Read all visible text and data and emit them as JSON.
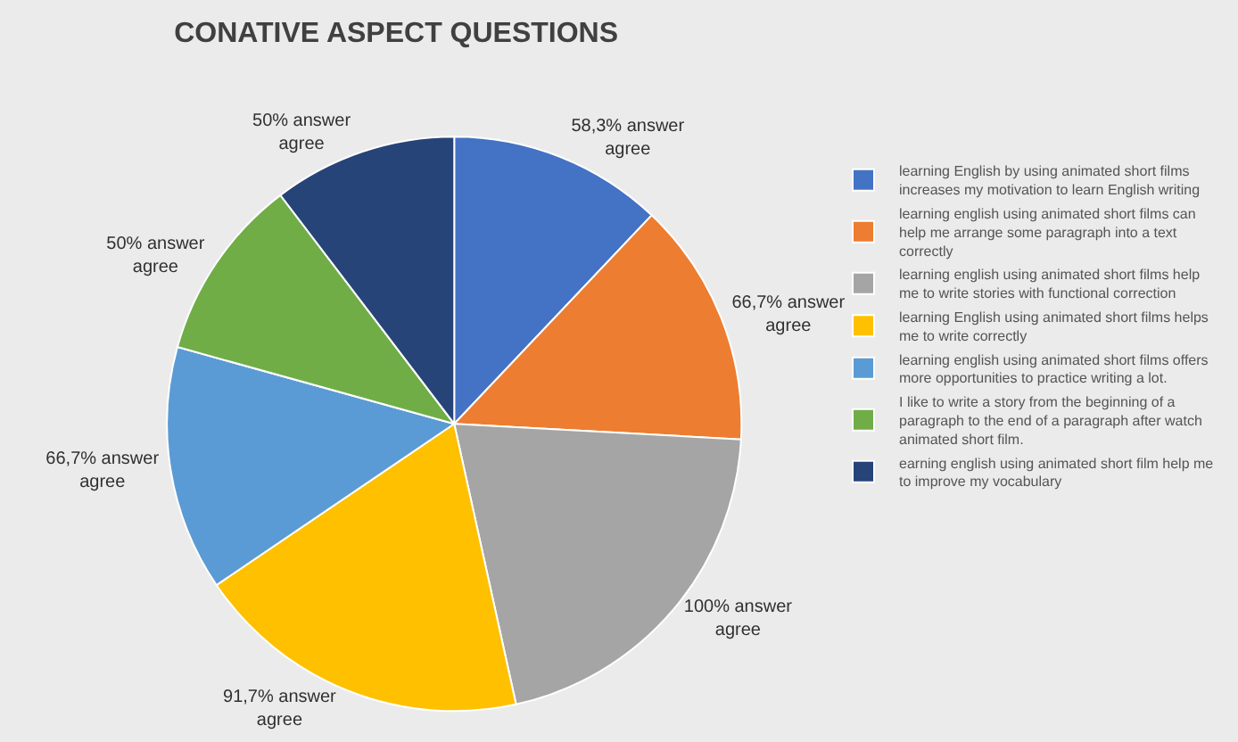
{
  "chart_data": {
    "type": "pie",
    "title": "CONATIVE ASPECT QUESTIONS",
    "categories": [
      "learning English by using animated short films increases my motivation to learn English writing",
      "learning english using animated short films can help me arrange some paragraph into a text correctly",
      "learning english using animated short films help me to write stories with functional correction",
      "learning English using animated short films helps me to write correctly",
      "learning english using animated short films offers more opportunities to practice writing a lot.",
      "I like to write a story from the beginning of a paragraph to the end of a paragraph after watch animated short film.",
      "earning english using animated short film help me to improve my vocabulary"
    ],
    "values": [
      58.3,
      66.7,
      100,
      91.7,
      66.7,
      50,
      50
    ],
    "value_labels": [
      "58,3% answer agree",
      "66,7% answer agree",
      "100% answer agree",
      "91,7% answer agree",
      "66,7% answer agree",
      "50% answer agree",
      "50% answer agree"
    ],
    "colors": [
      "#4472c4",
      "#ed7d31",
      "#a5a5a5",
      "#ffc000",
      "#5b9bd5",
      "#70ad47",
      "#264478"
    ],
    "legend": "right"
  }
}
